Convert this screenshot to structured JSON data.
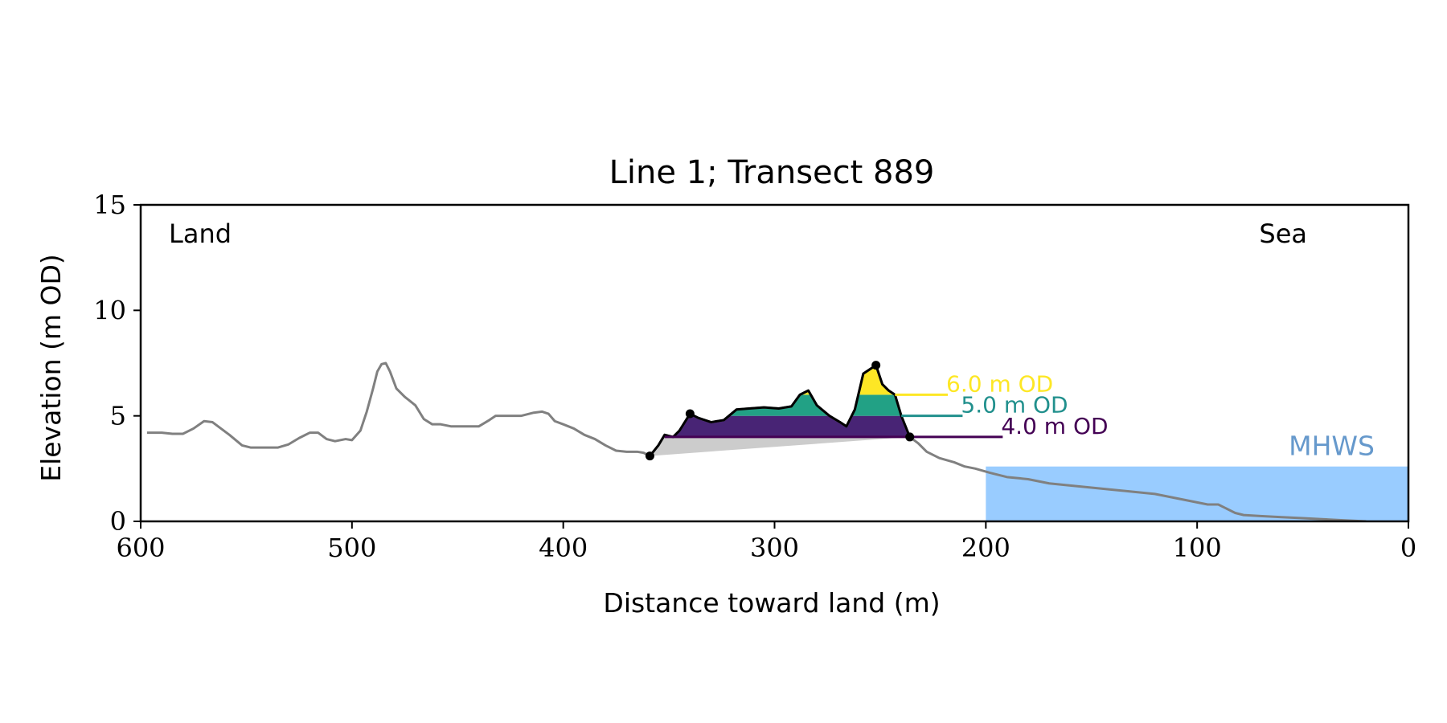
{
  "colors": {
    "profile": "#808080",
    "dune_outline": "#000000",
    "base_fill": "#cccccc",
    "sea": "#99ccff",
    "mhws_text": "#6699cc",
    "level_4": "#440154",
    "level_4_fill": "#482475",
    "level_5": "#21908d",
    "level_5_fill": "#22a185",
    "level_6": "#fde725",
    "level_6_fill": "#fde725"
  },
  "chart_data": {
    "type": "area",
    "title": "Line 1; Transect 889",
    "xlabel": "Distance toward land (m)",
    "ylabel": "Elevation (m OD)",
    "xlim": [
      600,
      0
    ],
    "ylim": [
      0,
      15
    ],
    "xticks": [
      {
        "value": 600,
        "label": "600"
      },
      {
        "value": 500,
        "label": "500"
      },
      {
        "value": 400,
        "label": "400"
      },
      {
        "value": 300,
        "label": "300"
      },
      {
        "value": 200,
        "label": "200"
      },
      {
        "value": 100,
        "label": "100"
      },
      {
        "value": 0,
        "label": "0"
      }
    ],
    "yticks": [
      {
        "value": 0,
        "label": "0"
      },
      {
        "value": 5,
        "label": "5"
      },
      {
        "value": 10,
        "label": "10"
      },
      {
        "value": 15,
        "label": "15"
      }
    ],
    "land_label": "Land",
    "sea_label": "Sea",
    "mhws": {
      "label": "MHWS",
      "elevation": 2.6,
      "from_distance": 200,
      "to_distance": 0
    },
    "levels": [
      {
        "elevation": 6.0,
        "label": "6.0 m OD",
        "color_key": "level_6"
      },
      {
        "elevation": 5.0,
        "label": "5.0 m OD",
        "color_key": "level_5"
      },
      {
        "elevation": 4.0,
        "label": "4.0 m OD",
        "color_key": "level_4"
      }
    ],
    "dune_points": [
      {
        "x": 359,
        "y": 3.1
      },
      {
        "x": 340,
        "y": 5.1
      },
      {
        "x": 252,
        "y": 7.4
      },
      {
        "x": 236,
        "y": 4.0
      }
    ],
    "dune_base": {
      "toe": {
        "x": 359,
        "y": 3.1
      },
      "heel": {
        "x": 236,
        "y": 4.0
      }
    },
    "profile": [
      [
        597,
        4.2
      ],
      [
        590,
        4.2
      ],
      [
        585,
        4.15
      ],
      [
        580,
        4.15
      ],
      [
        575,
        4.4
      ],
      [
        570,
        4.75
      ],
      [
        566,
        4.7
      ],
      [
        562,
        4.4
      ],
      [
        558,
        4.1
      ],
      [
        552,
        3.6
      ],
      [
        548,
        3.5
      ],
      [
        542,
        3.5
      ],
      [
        535,
        3.5
      ],
      [
        530,
        3.65
      ],
      [
        525,
        3.95
      ],
      [
        520,
        4.2
      ],
      [
        516,
        4.2
      ],
      [
        512,
        3.9
      ],
      [
        508,
        3.8
      ],
      [
        503,
        3.9
      ],
      [
        500,
        3.85
      ],
      [
        496,
        4.3
      ],
      [
        493,
        5.2
      ],
      [
        490,
        6.3
      ],
      [
        488,
        7.1
      ],
      [
        486,
        7.45
      ],
      [
        484,
        7.5
      ],
      [
        482,
        7.1
      ],
      [
        479,
        6.3
      ],
      [
        475,
        5.9
      ],
      [
        470,
        5.5
      ],
      [
        466,
        4.85
      ],
      [
        462,
        4.6
      ],
      [
        458,
        4.6
      ],
      [
        453,
        4.5
      ],
      [
        448,
        4.5
      ],
      [
        444,
        4.5
      ],
      [
        440,
        4.5
      ],
      [
        435,
        4.8
      ],
      [
        432,
        5.0
      ],
      [
        427,
        5.0
      ],
      [
        420,
        5.0
      ],
      [
        414,
        5.15
      ],
      [
        410,
        5.2
      ],
      [
        407,
        5.1
      ],
      [
        404,
        4.75
      ],
      [
        400,
        4.6
      ],
      [
        395,
        4.4
      ],
      [
        390,
        4.1
      ],
      [
        385,
        3.9
      ],
      [
        380,
        3.6
      ],
      [
        375,
        3.35
      ],
      [
        370,
        3.3
      ],
      [
        365,
        3.3
      ],
      [
        362,
        3.25
      ],
      [
        359,
        3.1
      ],
      [
        355,
        3.6
      ],
      [
        352,
        4.1
      ],
      [
        348,
        4.0
      ],
      [
        345,
        4.3
      ],
      [
        340,
        5.1
      ],
      [
        336,
        4.9
      ],
      [
        330,
        4.7
      ],
      [
        324,
        4.8
      ],
      [
        318,
        5.3
      ],
      [
        312,
        5.35
      ],
      [
        305,
        5.4
      ],
      [
        298,
        5.35
      ],
      [
        292,
        5.45
      ],
      [
        288,
        6.0
      ],
      [
        284,
        6.2
      ],
      [
        280,
        5.5
      ],
      [
        274,
        5.0
      ],
      [
        269,
        4.7
      ],
      [
        266,
        4.5
      ],
      [
        262,
        5.3
      ],
      [
        258,
        7.0
      ],
      [
        252,
        7.4
      ],
      [
        249,
        6.5
      ],
      [
        246,
        6.2
      ],
      [
        243,
        6.0
      ],
      [
        240,
        5.0
      ],
      [
        236,
        4.0
      ],
      [
        232,
        3.7
      ],
      [
        228,
        3.3
      ],
      [
        222,
        3.0
      ],
      [
        215,
        2.8
      ],
      [
        210,
        2.6
      ],
      [
        205,
        2.5
      ],
      [
        198,
        2.3
      ],
      [
        190,
        2.1
      ],
      [
        180,
        2.0
      ],
      [
        170,
        1.8
      ],
      [
        160,
        1.7
      ],
      [
        150,
        1.6
      ],
      [
        140,
        1.5
      ],
      [
        130,
        1.4
      ],
      [
        120,
        1.3
      ],
      [
        110,
        1.1
      ],
      [
        100,
        0.9
      ],
      [
        95,
        0.8
      ],
      [
        90,
        0.8
      ],
      [
        86,
        0.6
      ],
      [
        82,
        0.4
      ],
      [
        78,
        0.3
      ],
      [
        70,
        0.25
      ],
      [
        60,
        0.2
      ],
      [
        50,
        0.15
      ],
      [
        40,
        0.1
      ],
      [
        30,
        0.05
      ],
      [
        20,
        0.0
      ]
    ],
    "dune_crest": [
      [
        359,
        3.1
      ],
      [
        355,
        3.6
      ],
      [
        352,
        4.1
      ],
      [
        348,
        4.0
      ],
      [
        345,
        4.3
      ],
      [
        340,
        5.1
      ],
      [
        336,
        4.9
      ],
      [
        330,
        4.7
      ],
      [
        324,
        4.8
      ],
      [
        318,
        5.3
      ],
      [
        312,
        5.35
      ],
      [
        305,
        5.4
      ],
      [
        298,
        5.35
      ],
      [
        292,
        5.45
      ],
      [
        288,
        6.0
      ],
      [
        284,
        6.2
      ],
      [
        280,
        5.5
      ],
      [
        274,
        5.0
      ],
      [
        269,
        4.7
      ],
      [
        266,
        4.5
      ],
      [
        262,
        5.3
      ],
      [
        258,
        7.0
      ],
      [
        252,
        7.4
      ],
      [
        249,
        6.5
      ],
      [
        246,
        6.2
      ],
      [
        243,
        6.0
      ],
      [
        240,
        5.0
      ],
      [
        236,
        4.0
      ]
    ]
  }
}
